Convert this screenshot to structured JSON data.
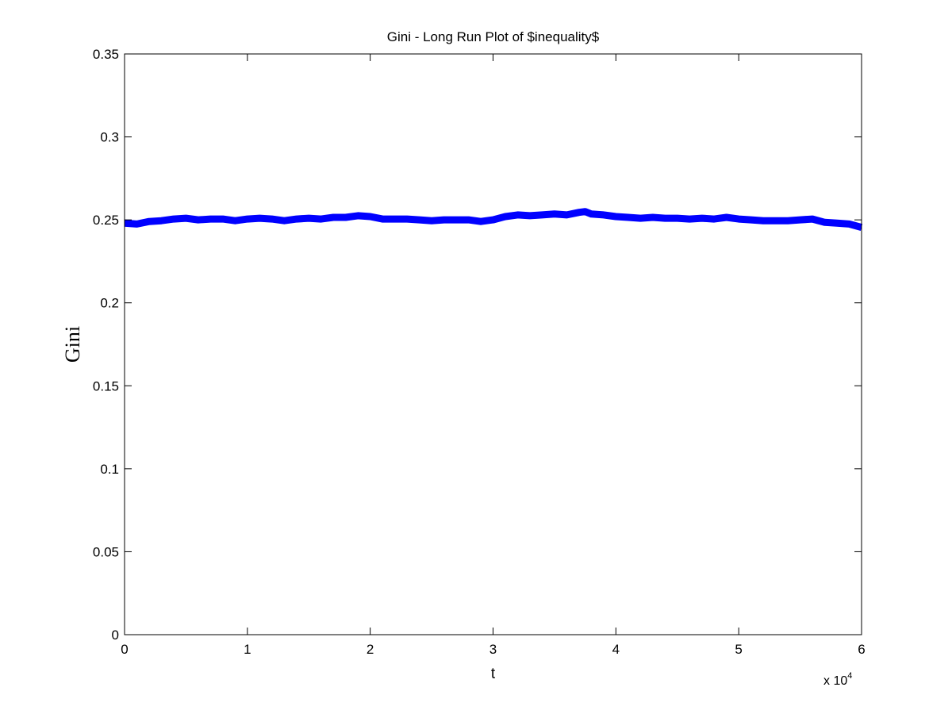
{
  "chart_data": {
    "type": "line",
    "title": "Gini - Long Run Plot of $inequality$",
    "xlabel": "t",
    "ylabel": "Gini",
    "x_multiplier": {
      "base": "x 10",
      "exponent": "4"
    },
    "xlim": [
      0,
      6
    ],
    "ylim": [
      0,
      0.35
    ],
    "x_ticks": [
      0,
      1,
      2,
      3,
      4,
      5,
      6
    ],
    "x_tick_labels": [
      "0",
      "1",
      "2",
      "3",
      "4",
      "5",
      "6"
    ],
    "y_ticks": [
      0,
      0.05,
      0.1,
      0.15,
      0.2,
      0.25,
      0.3,
      0.35
    ],
    "y_tick_labels": [
      "0",
      "0.05",
      "0.1",
      "0.15",
      "0.2",
      "0.25",
      "0.3",
      "0.35"
    ],
    "grid": false,
    "legend": "none",
    "series": [
      {
        "color": "#0000ff",
        "x": [
          0,
          0.1,
          0.2,
          0.3,
          0.4,
          0.5,
          0.6,
          0.7,
          0.8,
          0.9,
          1.0,
          1.1,
          1.2,
          1.3,
          1.4,
          1.5,
          1.6,
          1.7,
          1.8,
          1.9,
          2.0,
          2.1,
          2.2,
          2.3,
          2.4,
          2.5,
          2.6,
          2.7,
          2.8,
          2.9,
          3.0,
          3.1,
          3.2,
          3.3,
          3.4,
          3.5,
          3.6,
          3.7,
          3.75,
          3.8,
          3.9,
          4.0,
          4.1,
          4.2,
          4.3,
          4.4,
          4.5,
          4.6,
          4.7,
          4.8,
          4.9,
          5.0,
          5.1,
          5.2,
          5.3,
          5.4,
          5.5,
          5.6,
          5.7,
          5.8,
          5.9,
          6.0
        ],
        "y": [
          0.248,
          0.2475,
          0.249,
          0.2495,
          0.2505,
          0.251,
          0.25,
          0.2505,
          0.2505,
          0.2495,
          0.2505,
          0.251,
          0.2505,
          0.2495,
          0.2505,
          0.251,
          0.2505,
          0.2515,
          0.2515,
          0.2525,
          0.252,
          0.2505,
          0.2505,
          0.2505,
          0.25,
          0.2495,
          0.25,
          0.25,
          0.25,
          0.249,
          0.25,
          0.252,
          0.253,
          0.2525,
          0.253,
          0.2535,
          0.253,
          0.2545,
          0.255,
          0.2535,
          0.253,
          0.252,
          0.2515,
          0.251,
          0.2515,
          0.251,
          0.251,
          0.2505,
          0.251,
          0.2505,
          0.2515,
          0.2505,
          0.25,
          0.2495,
          0.2495,
          0.2495,
          0.25,
          0.2505,
          0.2485,
          0.248,
          0.2475,
          0.2455
        ]
      }
    ]
  }
}
